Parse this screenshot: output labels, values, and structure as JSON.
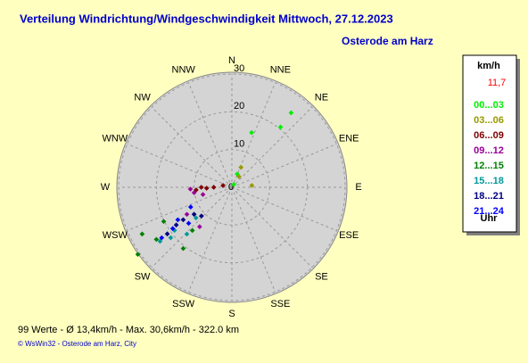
{
  "chart_data": {
    "type": "polar_scatter",
    "title": "Verteilung Windrichtung/Windgeschwindigkeit  Mittwoch, 27.12.2023",
    "subtitle": "Osterode am Harz",
    "unit": "km/h",
    "current_value": "11,7",
    "legend_footer": "Uhr",
    "summary": "99 Werte   -   Ø 13,4km/h  -  Max. 30,6km/h   -   322.0 km",
    "credit": "© WsWin32  -  Osterode am Harz, City",
    "directions": [
      "N",
      "NNE",
      "NE",
      "ENE",
      "E",
      "ESE",
      "SE",
      "SSE",
      "S",
      "SSW",
      "SW",
      "WSW",
      "W",
      "WNW",
      "NW",
      "NNW"
    ],
    "rlim": [
      0,
      30
    ],
    "rticks": [
      0,
      10,
      20,
      30
    ],
    "grid": true,
    "series": [
      {
        "name": "00...03",
        "color": "#00ee00",
        "direction": [
          38.5,
          38.9,
          19.8,
          21.8,
          34
        ],
        "speed": [
          25.2,
          20.5,
          15.4,
          3.8,
          0.9
        ]
      },
      {
        "name": "03...06",
        "color": "#999900",
        "direction": [
          24.4,
          84.8,
          33.7
        ],
        "speed": [
          5.8,
          5.3,
          3.4
        ]
      },
      {
        "name": "06...09",
        "color": "#800000",
        "direction": [
          270,
          268,
          265.7,
          270,
          281.3
        ],
        "speed": [
          4.8,
          6.7,
          9.5,
          8.1,
          2.4
        ]
      },
      {
        "name": "09...12",
        "color": "#990099",
        "direction": [
          261.9,
          267.5,
          239,
          219.3,
          256
        ],
        "speed": [
          10.1,
          11.0,
          13.9,
          13.5,
          7.9
        ]
      },
      {
        "name": "12...15",
        "color": "#008000",
        "direction": [
          242.5,
          235.4,
          218.5,
          243.4,
          222.5,
          234.5
        ],
        "speed": [
          26.8,
          24.3,
          20.7,
          20.2,
          15.5,
          30.6
        ]
      },
      {
        "name": "15...18",
        "color": "#009999",
        "direction": [
          233.1,
          230.5,
          233.1,
          223.9,
          229.6
        ],
        "speed": [
          23.8,
          21.0,
          19.0,
          17.2,
          12.5
        ]
      },
      {
        "name": "18...21",
        "color": "#000080",
        "direction": [
          236.3,
          235.9,
          234.2,
          234.5,
          226.7
        ],
        "speed": [
          15.5,
          17.8,
          21.1,
          12.3,
          11.1
        ]
      },
      {
        "name": "21...24",
        "color": "#0000ff",
        "direction": [
          239,
          235.1,
          244.4,
          234.3,
          230.2
        ],
        "speed": [
          16.7,
          19.1,
          12.1,
          22.9,
          14.9
        ]
      }
    ]
  }
}
